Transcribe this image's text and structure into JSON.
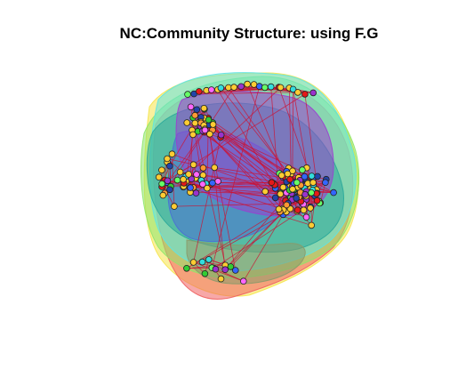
{
  "title": "NC:Community Structure: using F.G",
  "palette": {
    "background": "#ffffff",
    "edge": "#cc1133",
    "node_border": "#222222"
  },
  "community_hulls": [
    {
      "name": "community-yellow",
      "color": "#f5e44a"
    },
    {
      "name": "community-red",
      "color": "#f06060"
    },
    {
      "name": "community-green",
      "color": "#8ee66a"
    },
    {
      "name": "community-cyan",
      "color": "#5fe3e3"
    },
    {
      "name": "community-teal",
      "color": "#2aa89a"
    },
    {
      "name": "community-blue",
      "color": "#4a6fd6"
    },
    {
      "name": "community-purple",
      "color": "#9a3fd0"
    },
    {
      "name": "community-olive",
      "color": "#8a9a6a"
    }
  ],
  "node_colors": [
    "#ffcc33",
    "#ff9933",
    "#e61919",
    "#33cc33",
    "#66ff66",
    "#3366ff",
    "#9933cc",
    "#33dddd",
    "#ff66ff",
    "#2244aa"
  ],
  "clusters": [
    {
      "name": "cluster-upper-left",
      "nodes": 38
    },
    {
      "name": "cluster-mid-left",
      "nodes": 30
    },
    {
      "name": "cluster-right-dense",
      "nodes": 110
    },
    {
      "name": "cluster-top-arc",
      "nodes": 22
    },
    {
      "name": "cluster-bottom",
      "nodes": 14
    },
    {
      "name": "cluster-left-side",
      "nodes": 16
    }
  ]
}
